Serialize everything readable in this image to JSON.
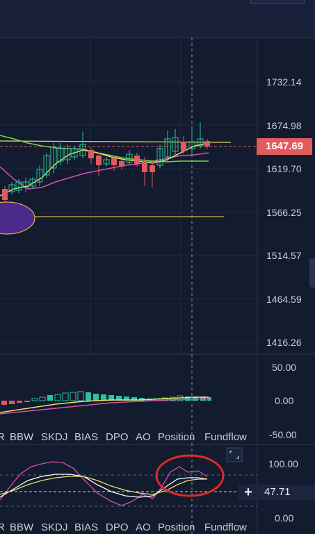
{
  "price_axis": {
    "ticks": [
      "1732.14",
      "1674.98",
      "1619.70",
      "1566.25",
      "1514.57",
      "1464.59",
      "1416.26"
    ],
    "current_price": "1647.69"
  },
  "macd_axis": {
    "ticks": [
      "50.00",
      "0.00",
      "-50.00"
    ]
  },
  "osc_axis": {
    "ticks": [
      "100.00",
      "0.00"
    ],
    "current_value": "47.71"
  },
  "indicator_tabs_top": [
    "R",
    "BBW",
    "SKDJ",
    "BIAS",
    "DPO",
    "AO",
    "Position",
    "Fundflow"
  ],
  "indicator_tabs_bottom": [
    "R",
    "BBW",
    "SKDJ",
    "BIAS",
    "DPO",
    "AO",
    "Position",
    "Fundflow"
  ],
  "colors": {
    "background": "#131b2e",
    "up": "#26c59a",
    "down": "#e05a5e",
    "ma_yellow": "#e9e36a",
    "ma_green": "#7ad34a",
    "ma_magenta": "#d94fb0",
    "highlight_circle": "#e02a2a"
  },
  "icons": [
    "expand-icon",
    "plus-icon",
    "collapse-handle-icon"
  ]
}
